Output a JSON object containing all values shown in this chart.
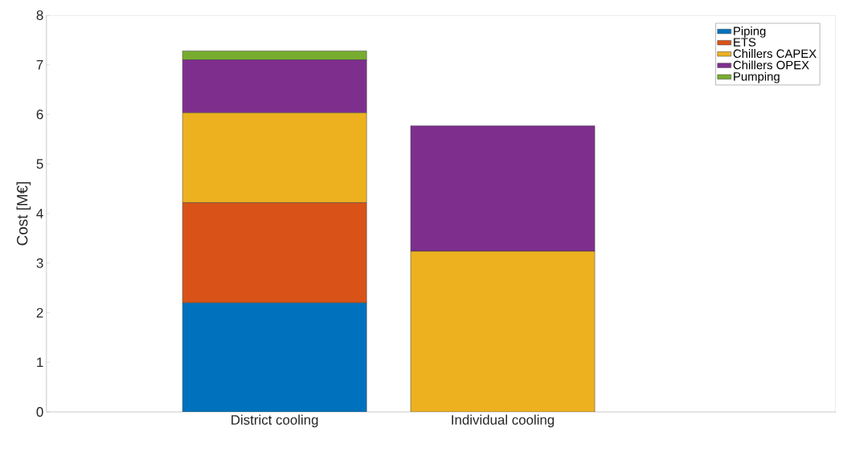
{
  "chart_data": {
    "type": "bar",
    "stacked": true,
    "ylabel": "Cost [M€]",
    "categories": [
      "District cooling",
      "Individual cooling"
    ],
    "series": [
      {
        "name": "Piping",
        "color": "#0072bd",
        "values": [
          2.2,
          0
        ]
      },
      {
        "name": "ETS",
        "color": "#d95319",
        "values": [
          2.02,
          0
        ]
      },
      {
        "name": "Chillers CAPEX",
        "color": "#edb120",
        "values": [
          1.81,
          3.24
        ]
      },
      {
        "name": "Chillers OPEX",
        "color": "#7e2f8e",
        "values": [
          1.07,
          2.53
        ]
      },
      {
        "name": "Pumping",
        "color": "#77ac30",
        "values": [
          0.18,
          0
        ]
      }
    ],
    "ylim": [
      0,
      8
    ],
    "yticks": [
      0,
      1,
      2,
      3,
      4,
      5,
      6,
      7,
      8
    ],
    "legend": "top right",
    "grid": false
  }
}
